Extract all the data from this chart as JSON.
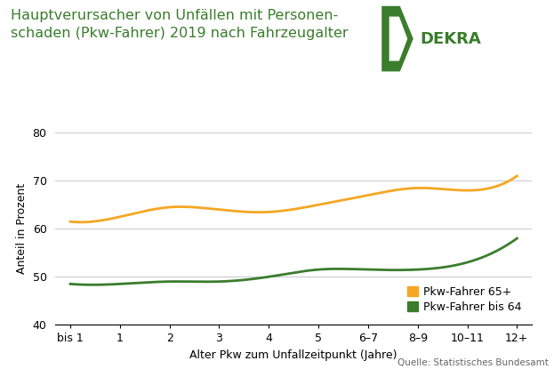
{
  "title_line1": "Hauptverursacher von Unfällen mit Personen-",
  "title_line2": "schaden (Pkw-Fahrer) 2019 nach Fahrzeugalter",
  "xlabel": "Alter Pkw zum Unfallzeitpunkt (Jahre)",
  "ylabel": "Anteil in Prozent",
  "source": "Quelle: Statistisches Bundesamt",
  "x_labels": [
    "bis 1",
    "1",
    "2",
    "3",
    "4",
    "5",
    "6–7",
    "8–9",
    "10–11",
    "12+"
  ],
  "orange_values": [
    61.5,
    62.5,
    64.5,
    64.0,
    63.5,
    65.0,
    67.0,
    68.5,
    68.0,
    71.0
  ],
  "green_values": [
    48.5,
    48.5,
    49.0,
    49.0,
    50.0,
    51.5,
    51.5,
    51.5,
    53.0,
    58.0
  ],
  "orange_color": "#F5A623",
  "green_color": "#3a7d2c",
  "legend_65plus": "Pkw-Fahrer 65+",
  "legend_bis64": "Pkw-Fahrer bis 64",
  "ylim": [
    40,
    80
  ],
  "yticks": [
    40,
    50,
    60,
    70,
    80
  ],
  "title_color": "#3a7d2c",
  "dekra_green": "#3a7d2c",
  "background_color": "#ffffff",
  "grid_color": "#cccccc",
  "title_fontsize": 11.5,
  "axis_fontsize": 9,
  "tick_fontsize": 9,
  "legend_fontsize": 9,
  "source_fontsize": 7.5
}
